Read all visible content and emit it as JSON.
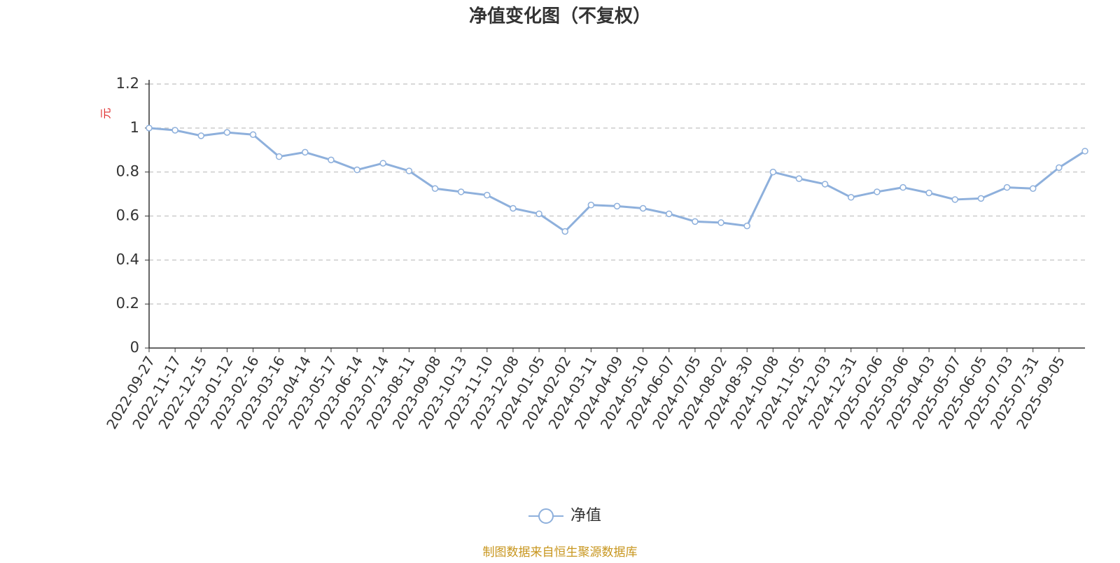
{
  "chart_data": {
    "type": "line",
    "title": "净值变化图（不复权）",
    "y_axis_label": "元",
    "source": "制图数据来自恒生聚源数据库",
    "categories": [
      "2022-09-27",
      "2022-11-17",
      "2022-12-15",
      "2023-01-12",
      "2023-02-16",
      "2023-03-16",
      "2023-04-14",
      "2023-05-17",
      "2023-06-14",
      "2023-07-14",
      "2023-08-11",
      "2023-09-08",
      "2023-10-13",
      "2023-11-10",
      "2023-12-08",
      "2024-01-05",
      "2024-02-02",
      "2024-03-11",
      "2024-04-09",
      "2024-05-10",
      "2024-06-07",
      "2024-07-05",
      "2024-08-02",
      "2024-08-30",
      "2024-10-08",
      "2024-11-05",
      "2024-12-03",
      "2024-12-31",
      "2025-02-06",
      "2025-03-06",
      "2025-04-03",
      "2025-05-07",
      "2025-06-05",
      "2025-07-03",
      "2025-07-31",
      "2025-09-05",
      null
    ],
    "series": [
      {
        "name": "净值",
        "color": "#8eb0dc",
        "values": [
          1.0,
          0.99,
          0.965,
          0.98,
          0.97,
          0.87,
          0.89,
          0.855,
          0.81,
          0.84,
          0.805,
          0.725,
          0.71,
          0.695,
          0.635,
          0.61,
          0.53,
          0.65,
          0.645,
          0.635,
          0.61,
          0.575,
          0.57,
          0.555,
          0.8,
          0.77,
          0.745,
          0.685,
          0.71,
          0.73,
          0.705,
          0.675,
          0.68,
          0.73,
          0.725,
          0.82,
          0.895
        ]
      }
    ],
    "ylim": [
      0,
      1.2
    ],
    "yticks": [
      0,
      0.2,
      0.4,
      0.6,
      0.8,
      1,
      1.2
    ],
    "grid": true,
    "legend": "bottom"
  }
}
